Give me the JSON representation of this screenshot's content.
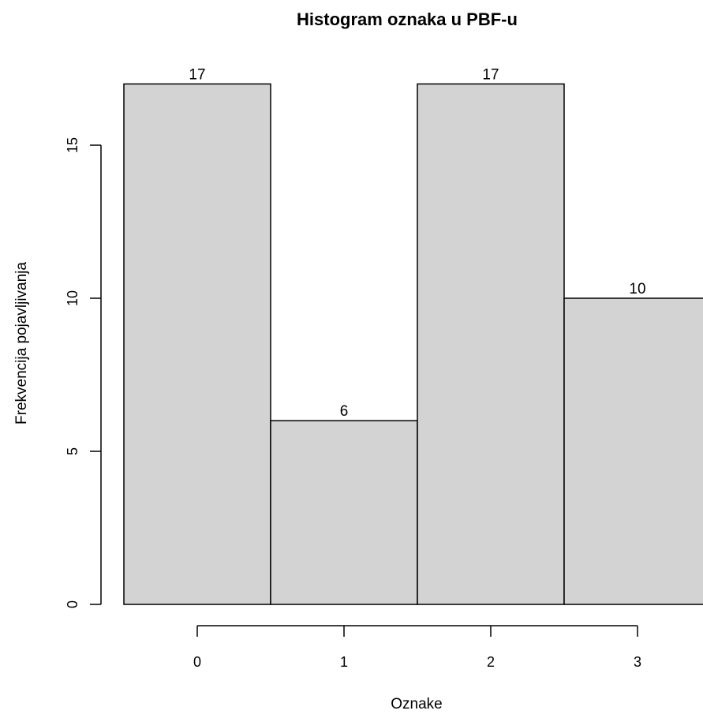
{
  "chart_data": {
    "type": "bar",
    "title": "Histogram oznaka u PBF-u",
    "xlabel": "Oznake",
    "ylabel": "Frekvencija pojavljivanja",
    "categories": [
      "0",
      "1",
      "2",
      "3"
    ],
    "values": [
      17,
      6,
      17,
      10
    ],
    "data_labels": [
      "17",
      "6",
      "17",
      "10"
    ],
    "y_ticks": [
      "0",
      "5",
      "10",
      "15"
    ],
    "ylim": [
      0,
      17
    ],
    "bar_color": "#d3d3d3",
    "grid": false,
    "legend": "none"
  }
}
